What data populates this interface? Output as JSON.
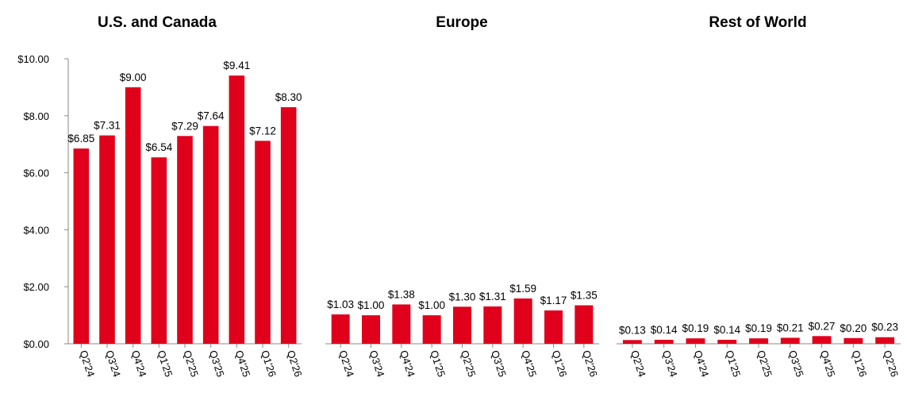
{
  "chart_data": [
    {
      "type": "bar",
      "title": "U.S. and Canada",
      "categories": [
        "Q2'24",
        "Q3'24",
        "Q4'24",
        "Q1'25",
        "Q2'25",
        "Q3'25",
        "Q4'25",
        "Q1'26",
        "Q2'26"
      ],
      "values": [
        6.85,
        7.31,
        9.0,
        6.54,
        7.29,
        7.64,
        9.41,
        7.12,
        8.3
      ],
      "value_labels": [
        "$6.85",
        "$7.31",
        "$9.00",
        "$6.54",
        "$7.29",
        "$7.64",
        "$9.41",
        "$7.12",
        "$8.30"
      ],
      "ylim": [
        0,
        10
      ],
      "yticks": [
        0,
        2,
        4,
        6,
        8,
        10
      ],
      "ytick_labels": [
        "$0.00",
        "$2.00",
        "$4.00",
        "$6.00",
        "$8.00",
        "$10.00"
      ],
      "grid": false,
      "color": "#e0001b"
    },
    {
      "type": "bar",
      "title": "Europe",
      "categories": [
        "Q2'24",
        "Q3'24",
        "Q4'24",
        "Q1'25",
        "Q2'25",
        "Q3'25",
        "Q4'25",
        "Q1'26",
        "Q2'26"
      ],
      "values": [
        1.03,
        1.0,
        1.38,
        1.0,
        1.3,
        1.31,
        1.59,
        1.17,
        1.35
      ],
      "value_labels": [
        "$1.03",
        "$1.00",
        "$1.38",
        "$1.00",
        "$1.30",
        "$1.31",
        "$1.59",
        "$1.17",
        "$1.35"
      ],
      "ylim": [
        0,
        10
      ],
      "grid": false,
      "color": "#e0001b"
    },
    {
      "type": "bar",
      "title": "Rest of World",
      "categories": [
        "Q2'24",
        "Q3'24",
        "Q4'24",
        "Q1'25",
        "Q2'25",
        "Q3'25",
        "Q4'25",
        "Q1'26",
        "Q2'26"
      ],
      "values": [
        0.13,
        0.14,
        0.19,
        0.14,
        0.19,
        0.21,
        0.27,
        0.2,
        0.23
      ],
      "value_labels": [
        "$0.13",
        "$0.14",
        "$0.19",
        "$0.14",
        "$0.19",
        "$0.21",
        "$0.27",
        "$0.20",
        "$0.23"
      ],
      "ylim": [
        0,
        10
      ],
      "grid": false,
      "color": "#e0001b"
    }
  ]
}
